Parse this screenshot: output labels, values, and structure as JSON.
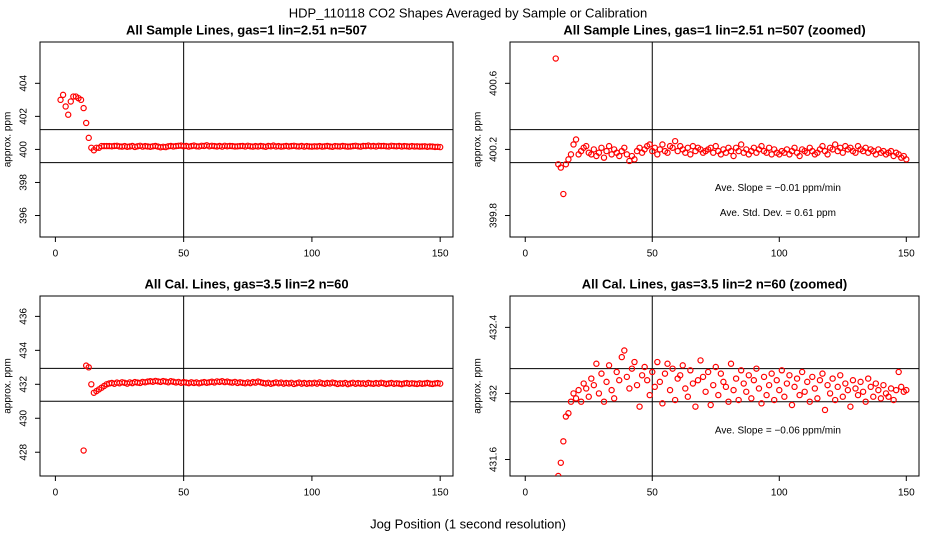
{
  "title": "HDP_110118  CO2 Shapes Averaged by Sample or Calibration",
  "xlabel": "Jog Position (1 second resolution)",
  "chart_data": [
    {
      "type": "scatter",
      "title": "All Sample Lines, gas=1 lin=2.51 n=507",
      "ylabel": "approx. ppm",
      "color": "#ff0000",
      "xlim": [
        -6,
        155
      ],
      "ylim": [
        394.7,
        406.5
      ],
      "xticks": [
        0,
        50,
        100,
        150
      ],
      "yticks": [
        396,
        398,
        400,
        402,
        404
      ],
      "hlines": [
        401.2,
        399.2
      ],
      "vlines": [
        50
      ],
      "x": [
        2,
        3,
        4,
        5,
        6,
        7,
        8,
        9,
        10,
        11,
        12,
        13,
        14,
        15,
        16,
        17,
        18,
        19,
        20,
        21,
        22,
        23,
        24,
        25,
        26,
        27,
        28,
        29,
        30,
        31,
        32,
        33,
        34,
        35,
        36,
        37,
        38,
        39,
        40,
        41,
        42,
        43,
        44,
        45,
        46,
        47,
        48,
        49,
        50,
        51,
        52,
        53,
        54,
        55,
        56,
        57,
        58,
        59,
        60,
        61,
        62,
        63,
        64,
        65,
        66,
        67,
        68,
        69,
        70,
        71,
        72,
        73,
        74,
        75,
        76,
        77,
        78,
        79,
        80,
        81,
        82,
        83,
        84,
        85,
        86,
        87,
        88,
        89,
        90,
        91,
        92,
        93,
        94,
        95,
        96,
        97,
        98,
        99,
        100,
        101,
        102,
        103,
        104,
        105,
        106,
        107,
        108,
        109,
        110,
        111,
        112,
        113,
        114,
        115,
        116,
        117,
        118,
        119,
        120,
        121,
        122,
        123,
        124,
        125,
        126,
        127,
        128,
        129,
        130,
        131,
        132,
        133,
        134,
        135,
        136,
        137,
        138,
        139,
        140,
        141,
        142,
        143,
        144,
        145,
        146,
        147,
        148,
        149,
        150
      ],
      "values": [
        403.0,
        403.3,
        402.6,
        402.1,
        402.9,
        403.2,
        403.2,
        403.1,
        403.0,
        402.5,
        401.6,
        400.7,
        400.1,
        399.95,
        400.1,
        400.1,
        400.2,
        400.2,
        400.2,
        400.2,
        400.19,
        400.21,
        400.22,
        400.18,
        400.17,
        400.2,
        400.16,
        400.18,
        400.21,
        400.15,
        400.19,
        400.22,
        400.17,
        400.2,
        400.18,
        400.16,
        400.19,
        400.21,
        400.17,
        400.13,
        400.16,
        400.14,
        400.19,
        400.21,
        400.18,
        400.2,
        400.22,
        400.23,
        400.19,
        400.21,
        400.17,
        400.2,
        400.23,
        400.19,
        400.18,
        400.22,
        400.21,
        400.25,
        400.19,
        400.22,
        400.2,
        400.18,
        400.21,
        400.17,
        400.22,
        400.19,
        400.21,
        400.2,
        400.18,
        400.19,
        400.2,
        400.21,
        400.18,
        400.22,
        400.19,
        400.17,
        400.2,
        400.18,
        400.21,
        400.19,
        400.16,
        400.21,
        400.19,
        400.23,
        400.18,
        400.2,
        400.17,
        400.19,
        400.21,
        400.18,
        400.2,
        400.22,
        400.19,
        400.18,
        400.21,
        400.17,
        400.2,
        400.18,
        400.17,
        400.19,
        400.18,
        400.2,
        400.17,
        400.19,
        400.21,
        400.18,
        400.16,
        400.2,
        400.19,
        400.18,
        400.21,
        400.19,
        400.17,
        400.18,
        400.2,
        400.22,
        400.19,
        400.17,
        400.21,
        400.2,
        400.23,
        400.19,
        400.21,
        400.18,
        400.22,
        400.2,
        400.21,
        400.19,
        400.18,
        400.22,
        400.2,
        400.19,
        400.21,
        400.18,
        400.2,
        400.19,
        400.17,
        400.2,
        400.18,
        400.19,
        400.17,
        400.18,
        400.19,
        400.16,
        400.18,
        400.17,
        400.15,
        400.16,
        400.14
      ]
    },
    {
      "type": "scatter",
      "title": "All Sample Lines, gas=1 lin=2.51 n=507 (zoomed)",
      "ylabel": "approx. ppm",
      "color": "#ff0000",
      "xlim": [
        -6,
        155
      ],
      "ylim": [
        399.67,
        400.85
      ],
      "xticks": [
        0,
        50,
        100,
        150
      ],
      "yticks": [
        399.8,
        400.2,
        400.6
      ],
      "hlines": [
        400.32,
        400.12
      ],
      "vlines": [
        50
      ],
      "annotations": [
        "Ave. Slope =  −0.01  ppm/min",
        "Ave. Std. Dev. =  0.61  ppm"
      ],
      "x": [
        12,
        13,
        14,
        15,
        16,
        17,
        18,
        19,
        20,
        21,
        22,
        23,
        24,
        25,
        26,
        27,
        28,
        29,
        30,
        31,
        32,
        33,
        34,
        35,
        36,
        37,
        38,
        39,
        40,
        41,
        42,
        43,
        44,
        45,
        46,
        47,
        48,
        49,
        50,
        51,
        52,
        53,
        54,
        55,
        56,
        57,
        58,
        59,
        60,
        61,
        62,
        63,
        64,
        65,
        66,
        67,
        68,
        69,
        70,
        71,
        72,
        73,
        74,
        75,
        76,
        77,
        78,
        79,
        80,
        81,
        82,
        83,
        84,
        85,
        86,
        87,
        88,
        89,
        90,
        91,
        92,
        93,
        94,
        95,
        96,
        97,
        98,
        99,
        100,
        101,
        102,
        103,
        104,
        105,
        106,
        107,
        108,
        109,
        110,
        111,
        112,
        113,
        114,
        115,
        116,
        117,
        118,
        119,
        120,
        121,
        122,
        123,
        124,
        125,
        126,
        127,
        128,
        129,
        130,
        131,
        132,
        133,
        134,
        135,
        136,
        137,
        138,
        139,
        140,
        141,
        142,
        143,
        144,
        145,
        146,
        147,
        148,
        149,
        150
      ],
      "values": [
        400.75,
        400.11,
        400.09,
        399.93,
        400.11,
        400.14,
        400.17,
        400.23,
        400.26,
        400.17,
        400.19,
        400.21,
        400.22,
        400.18,
        400.17,
        400.2,
        400.16,
        400.18,
        400.21,
        400.15,
        400.19,
        400.22,
        400.17,
        400.2,
        400.18,
        400.16,
        400.19,
        400.21,
        400.17,
        400.13,
        400.16,
        400.14,
        400.19,
        400.21,
        400.18,
        400.2,
        400.22,
        400.23,
        400.19,
        400.21,
        400.17,
        400.2,
        400.23,
        400.19,
        400.18,
        400.22,
        400.21,
        400.25,
        400.19,
        400.22,
        400.2,
        400.18,
        400.21,
        400.17,
        400.22,
        400.19,
        400.21,
        400.2,
        400.18,
        400.19,
        400.2,
        400.21,
        400.18,
        400.22,
        400.19,
        400.17,
        400.2,
        400.18,
        400.21,
        400.19,
        400.16,
        400.21,
        400.19,
        400.23,
        400.18,
        400.2,
        400.17,
        400.19,
        400.21,
        400.18,
        400.2,
        400.22,
        400.19,
        400.18,
        400.21,
        400.17,
        400.2,
        400.18,
        400.17,
        400.19,
        400.18,
        400.2,
        400.17,
        400.19,
        400.21,
        400.18,
        400.16,
        400.2,
        400.19,
        400.18,
        400.21,
        400.19,
        400.17,
        400.18,
        400.2,
        400.22,
        400.19,
        400.17,
        400.21,
        400.2,
        400.23,
        400.19,
        400.21,
        400.18,
        400.22,
        400.2,
        400.21,
        400.19,
        400.18,
        400.22,
        400.2,
        400.19,
        400.21,
        400.18,
        400.2,
        400.19,
        400.17,
        400.2,
        400.18,
        400.19,
        400.17,
        400.18,
        400.19,
        400.16,
        400.18,
        400.17,
        400.15,
        400.16,
        400.14
      ]
    },
    {
      "type": "scatter",
      "title": "All Cal. Lines, gas=3.5 lin=2 n=60",
      "ylabel": "approx. ppm",
      "color": "#ff0000",
      "xlim": [
        -6,
        155
      ],
      "ylim": [
        426.6,
        437.2
      ],
      "xticks": [
        0,
        50,
        100,
        150
      ],
      "yticks": [
        428,
        430,
        432,
        434,
        436
      ],
      "hlines": [
        432.94,
        431.0
      ],
      "vlines": [
        50
      ],
      "x": [
        11,
        12,
        13,
        14,
        15,
        16,
        17,
        18,
        19,
        20,
        21,
        22,
        23,
        24,
        25,
        26,
        27,
        28,
        29,
        30,
        31,
        32,
        33,
        34,
        35,
        36,
        37,
        38,
        39,
        40,
        41,
        42,
        43,
        44,
        45,
        46,
        47,
        48,
        49,
        50,
        51,
        52,
        53,
        54,
        55,
        56,
        57,
        58,
        59,
        60,
        61,
        62,
        63,
        64,
        65,
        66,
        67,
        68,
        69,
        70,
        71,
        72,
        73,
        74,
        75,
        76,
        77,
        78,
        79,
        80,
        81,
        82,
        83,
        84,
        85,
        86,
        87,
        88,
        89,
        90,
        91,
        92,
        93,
        94,
        95,
        96,
        97,
        98,
        99,
        100,
        101,
        102,
        103,
        104,
        105,
        106,
        107,
        108,
        109,
        110,
        111,
        112,
        113,
        114,
        115,
        116,
        117,
        118,
        119,
        120,
        121,
        122,
        123,
        124,
        125,
        126,
        127,
        128,
        129,
        130,
        131,
        132,
        133,
        134,
        135,
        136,
        137,
        138,
        139,
        140,
        141,
        142,
        143,
        144,
        145,
        146,
        147,
        148,
        149,
        150
      ],
      "values": [
        428.1,
        433.1,
        433.0,
        432.0,
        431.5,
        431.6,
        431.7,
        431.8,
        431.9,
        432.0,
        432.05,
        432.08,
        432.03,
        432.1,
        432.06,
        432.12,
        432.09,
        432.04,
        432.11,
        432.07,
        432.13,
        432.1,
        432.08,
        432.14,
        432.12,
        432.16,
        432.18,
        432.15,
        432.2,
        432.17,
        432.14,
        432.19,
        432.16,
        432.12,
        432.18,
        432.15,
        432.11,
        432.14,
        432.09,
        432.13,
        432.1,
        432.07,
        432.12,
        432.08,
        432.11,
        432.06,
        432.1,
        432.13,
        432.09,
        432.12,
        432.15,
        432.11,
        432.17,
        432.14,
        432.18,
        432.13,
        432.16,
        432.12,
        432.1,
        432.14,
        432.08,
        432.12,
        432.09,
        432.06,
        432.11,
        432.07,
        432.13,
        432.1,
        432.16,
        432.12,
        432.08,
        432.05,
        432.09,
        432.03,
        432.07,
        432.11,
        432.06,
        432.1,
        432.04,
        432.08,
        432.05,
        432.09,
        432.02,
        432.06,
        432.1,
        432.04,
        432.08,
        432.03,
        432.07,
        432.05,
        432.09,
        432.04,
        432.11,
        432.06,
        432.03,
        432.08,
        432.05,
        432.1,
        432.07,
        432.02,
        432.06,
        432.04,
        432.08,
        432.01,
        432.05,
        432.09,
        432.03,
        432.07,
        432.04,
        432.06,
        432.02,
        432.08,
        432.05,
        432.03,
        432.07,
        432.04,
        432.09,
        432.06,
        432.02,
        432.05,
        432.08,
        432.03,
        432.06,
        432.04,
        432.01,
        432.05,
        432.07,
        432.03,
        432.06,
        432.04,
        432.02,
        432.06,
        432.03,
        432.05,
        432.08,
        432.04,
        432.02,
        432.05,
        432.07,
        432.04
      ]
    },
    {
      "type": "scatter",
      "title": "All Cal. Lines, gas=3.5 lin=2 n=60 (zoomed)",
      "ylabel": "approx. ppm",
      "color": "#ff0000",
      "xlim": [
        -6,
        155
      ],
      "ylim": [
        431.5,
        432.59
      ],
      "xticks": [
        0,
        50,
        100,
        150
      ],
      "yticks": [
        431.6,
        432.0,
        432.4
      ],
      "hlines": [
        432.15,
        431.95
      ],
      "vlines": [
        50
      ],
      "annotations": [
        "Ave. Slope =  −0.06  ppm/min"
      ],
      "x": [
        13,
        14,
        15,
        16,
        17,
        18,
        19,
        20,
        21,
        22,
        23,
        24,
        25,
        26,
        27,
        28,
        29,
        30,
        31,
        32,
        33,
        34,
        35,
        36,
        37,
        38,
        39,
        40,
        41,
        42,
        43,
        44,
        45,
        46,
        47,
        48,
        49,
        50,
        51,
        52,
        53,
        54,
        55,
        56,
        57,
        58,
        59,
        60,
        61,
        62,
        63,
        64,
        65,
        66,
        67,
        68,
        69,
        70,
        71,
        72,
        73,
        74,
        75,
        76,
        77,
        78,
        79,
        80,
        81,
        82,
        83,
        84,
        85,
        86,
        87,
        88,
        89,
        90,
        91,
        92,
        93,
        94,
        95,
        96,
        97,
        98,
        99,
        100,
        101,
        102,
        103,
        104,
        105,
        106,
        107,
        108,
        109,
        110,
        111,
        112,
        113,
        114,
        115,
        116,
        117,
        118,
        119,
        120,
        121,
        122,
        123,
        124,
        125,
        126,
        127,
        128,
        129,
        130,
        131,
        132,
        133,
        134,
        135,
        136,
        137,
        138,
        139,
        140,
        141,
        142,
        143,
        144,
        145,
        146,
        147,
        148,
        149,
        150
      ],
      "values": [
        431.5,
        431.58,
        431.71,
        431.86,
        431.88,
        431.95,
        432.0,
        431.97,
        432.02,
        431.95,
        432.06,
        432.03,
        431.98,
        432.09,
        432.05,
        432.18,
        432.0,
        432.12,
        431.95,
        432.07,
        432.17,
        432.02,
        431.97,
        432.13,
        432.08,
        432.22,
        432.26,
        432.1,
        432.03,
        432.15,
        432.19,
        432.05,
        431.92,
        432.11,
        432.16,
        432.08,
        431.99,
        432.13,
        432.04,
        432.19,
        432.07,
        431.94,
        432.12,
        432.18,
        432.02,
        432.15,
        431.96,
        432.09,
        432.11,
        432.17,
        432.03,
        431.98,
        432.14,
        432.06,
        431.92,
        432.08,
        432.2,
        432.1,
        432.01,
        432.13,
        431.93,
        432.05,
        432.16,
        431.99,
        432.12,
        432.07,
        432.04,
        431.95,
        432.18,
        432.02,
        432.09,
        431.96,
        432.14,
        432.06,
        432.01,
        432.11,
        431.97,
        432.08,
        432.15,
        432.03,
        431.94,
        432.1,
        431.99,
        432.05,
        432.12,
        431.96,
        432.08,
        432.02,
        432.14,
        431.98,
        432.06,
        432.11,
        431.93,
        432.04,
        432.09,
        431.99,
        432.13,
        432.01,
        432.07,
        431.95,
        432.1,
        432.03,
        431.97,
        432.08,
        432.12,
        431.9,
        432.05,
        432.0,
        432.09,
        431.96,
        432.04,
        432.11,
        431.98,
        432.06,
        432.02,
        431.92,
        432.08,
        432.03,
        431.99,
        432.07,
        432.01,
        431.95,
        432.09,
        432.04,
        431.98,
        432.06,
        432.02,
        431.97,
        432.05,
        432.0,
        431.98,
        432.03,
        431.96,
        432.02,
        432.13,
        432.04,
        432.01,
        432.02
      ]
    }
  ]
}
